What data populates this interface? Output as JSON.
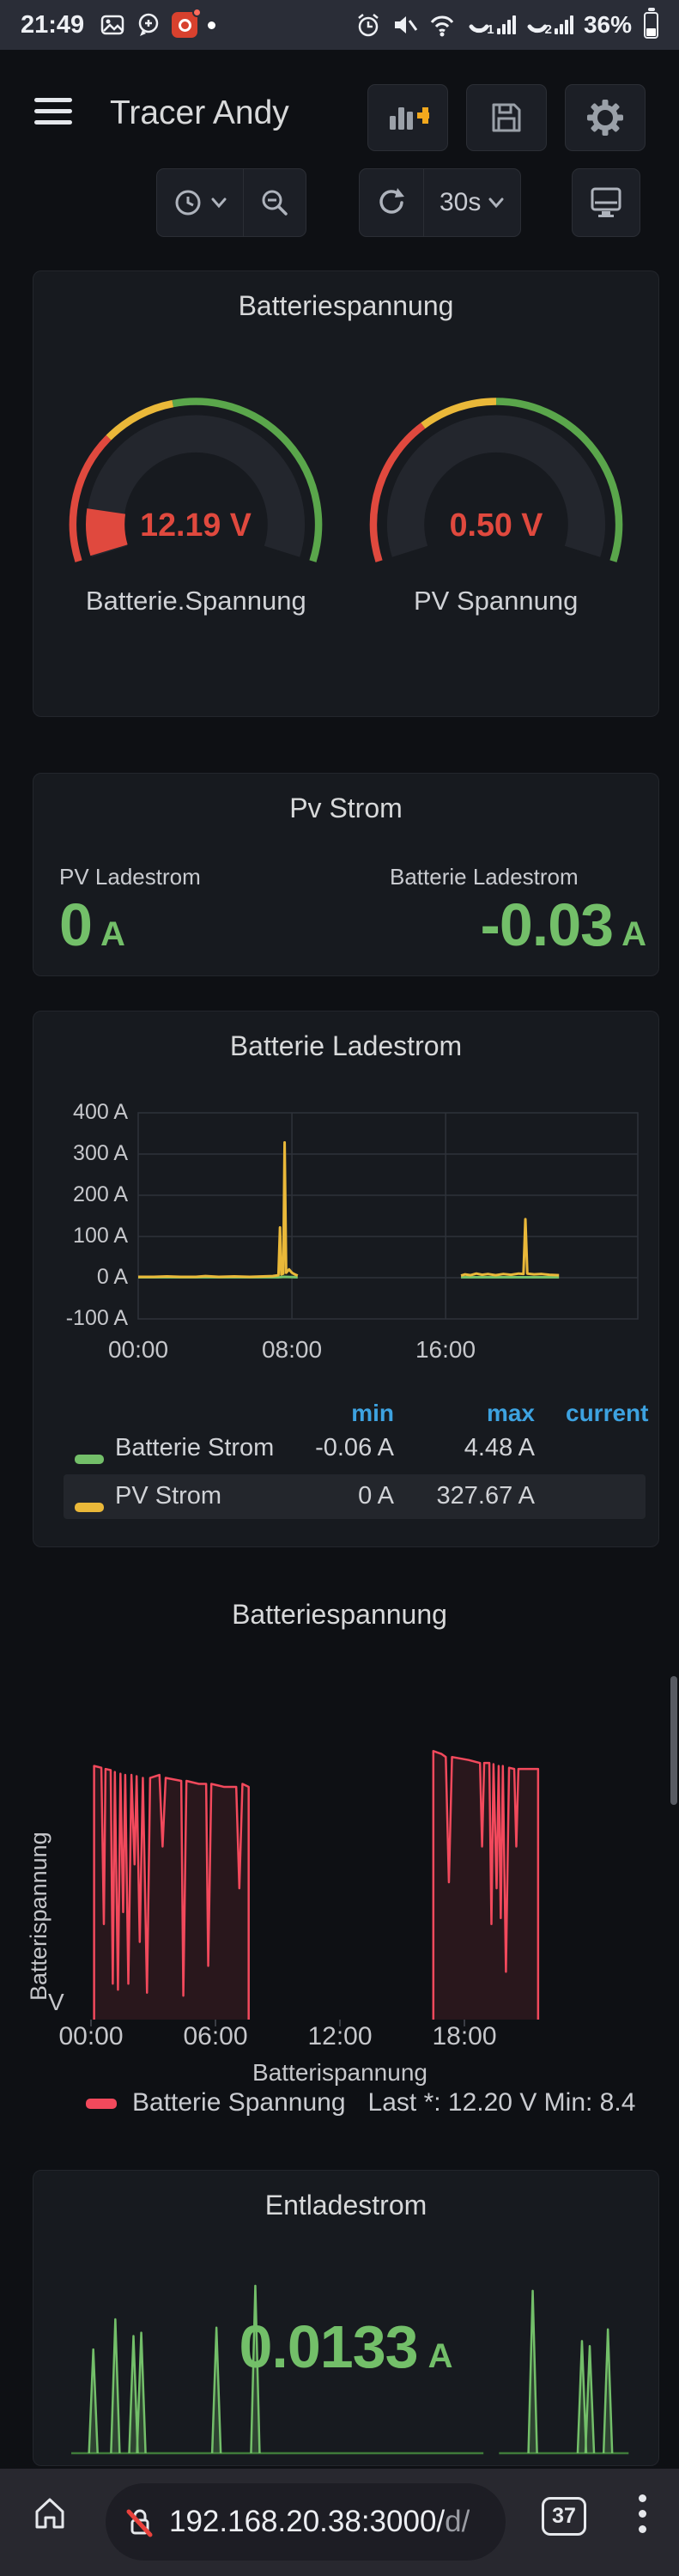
{
  "status_bar": {
    "time": "21:49",
    "battery": "36%",
    "sim1": "1",
    "sim2": "2"
  },
  "header": {
    "title": "Tracer Andy"
  },
  "toolbar": {
    "interval": "30s"
  },
  "panels": {
    "gauge_panel": {
      "title": "Batteriespannung"
    },
    "pv": {
      "title": "Pv Strom",
      "stats": [
        {
          "label": "PV Ladestrom",
          "value": "0",
          "unit": "A"
        },
        {
          "label": "Batterie Ladestrom",
          "value": "-0.03",
          "unit": "A"
        }
      ]
    }
  },
  "chart_data": [
    {
      "type": "gauge",
      "title": "Batterie.Spannung",
      "value": 12.19,
      "unit": "V",
      "display": "12.19 V",
      "fill_fraction": 0.12,
      "value_color": "#E0493E",
      "thresholds": [
        {
          "to": 0.29,
          "color": "#E0493E"
        },
        {
          "to": 0.45,
          "color": "#EAB839"
        },
        {
          "to": 1,
          "color": "#5AA64B"
        }
      ]
    },
    {
      "type": "gauge",
      "title": "PV Spannung",
      "value": 0.5,
      "unit": "V",
      "display": "0.50 V",
      "fill_fraction": 0.008,
      "value_color": "#E0493E",
      "thresholds": [
        {
          "to": 0.33,
          "color": "#E0493E"
        },
        {
          "to": 0.5,
          "color": "#EAB839"
        },
        {
          "to": 1,
          "color": "#5AA64B"
        }
      ]
    },
    {
      "type": "line",
      "title": "Batterie Ladestrom",
      "ylim": [
        -100,
        400
      ],
      "x_hours": [
        0,
        26
      ],
      "yticks": [
        "400 A",
        "300 A",
        "200 A",
        "100 A",
        "0 A",
        "-100 A"
      ],
      "xticks": [
        "00:00",
        "08:00",
        "16:00"
      ],
      "legend_columns": [
        "min",
        "max",
        "current"
      ],
      "series": [
        {
          "name": "Batterie Strom",
          "color": "#73BF69",
          "min": "-0.06 A",
          "max": "4.48 A",
          "segments": [
            [
              [
                0,
                1
              ],
              [
                7.3,
                1
              ],
              [
                7.6,
                2
              ],
              [
                8.3,
                1
              ]
            ],
            [
              [
                16.8,
                1
              ],
              [
                21.9,
                1
              ]
            ]
          ]
        },
        {
          "name": "PV Strom",
          "color": "#EAB839",
          "min": "0 A",
          "max": "327.67 A",
          "segments": [
            [
              [
                0,
                2
              ],
              [
                0.8,
                2
              ],
              [
                1.5,
                3
              ],
              [
                2.2,
                2
              ],
              [
                3,
                2
              ],
              [
                3.5,
                4
              ],
              [
                4.2,
                2
              ],
              [
                5,
                3
              ],
              [
                5.8,
                2
              ],
              [
                6.5,
                3
              ],
              [
                7.0,
                4
              ],
              [
                7.3,
                6
              ],
              [
                7.38,
                122
              ],
              [
                7.45,
                8
              ],
              [
                7.55,
                10
              ],
              [
                7.62,
                328
              ],
              [
                7.7,
                12
              ],
              [
                7.85,
                20
              ],
              [
                8.0,
                12
              ],
              [
                8.15,
                8
              ],
              [
                8.3,
                5
              ]
            ],
            [
              [
                16.8,
                5
              ],
              [
                17.0,
                8
              ],
              [
                17.3,
                6
              ],
              [
                17.6,
                10
              ],
              [
                17.9,
                7
              ],
              [
                18.2,
                9
              ],
              [
                18.6,
                6
              ],
              [
                19.0,
                9
              ],
              [
                19.4,
                7
              ],
              [
                19.8,
                10
              ],
              [
                20.05,
                9
              ],
              [
                20.15,
                142
              ],
              [
                20.25,
                10
              ],
              [
                20.6,
                8
              ],
              [
                21.0,
                9
              ],
              [
                21.4,
                7
              ],
              [
                21.9,
                6
              ]
            ]
          ]
        }
      ]
    },
    {
      "type": "line",
      "title": "Batteriespannung",
      "ylabel": "Batterispannung",
      "y_unit": "V",
      "xlabel": "Batterispannung",
      "xticks": [
        "00:00",
        "06:00",
        "12:00",
        "18:00"
      ],
      "ylim": [
        8,
        13
      ],
      "x_hours": [
        0,
        26
      ],
      "series": [
        {
          "name": "Batterie Spannung",
          "color": "#F2495C",
          "fill": true,
          "legend_stats": "Last *: 12.20 V  Min: 8.4",
          "segments": [
            [
              [
                0.15,
                12.25
              ],
              [
                0.5,
                12.22
              ],
              [
                0.62,
                9.6
              ],
              [
                0.7,
                12.2
              ],
              [
                0.95,
                12.18
              ],
              [
                1.05,
                8.6
              ],
              [
                1.15,
                12.15
              ],
              [
                1.3,
                8.5
              ],
              [
                1.42,
                12.12
              ],
              [
                1.55,
                9.8
              ],
              [
                1.65,
                12.1
              ],
              [
                1.8,
                8.6
              ],
              [
                1.95,
                12.1
              ],
              [
                2.1,
                10.6
              ],
              [
                2.2,
                12.08
              ],
              [
                2.35,
                9.3
              ],
              [
                2.5,
                12.05
              ],
              [
                2.7,
                8.45
              ],
              [
                2.85,
                12.05
              ],
              [
                3.3,
                12.1
              ],
              [
                3.45,
                10.9
              ],
              [
                3.6,
                12.05
              ],
              [
                4.35,
                12.0
              ],
              [
                4.45,
                8.4
              ],
              [
                4.6,
                12.0
              ],
              [
                5.2,
                11.95
              ],
              [
                5.55,
                11.95
              ],
              [
                5.65,
                8.9
              ],
              [
                5.8,
                11.95
              ],
              [
                6.4,
                11.9
              ],
              [
                7.0,
                11.9
              ],
              [
                7.15,
                10.2
              ],
              [
                7.3,
                11.95
              ],
              [
                7.6,
                11.9
              ]
            ],
            [
              [
                16.5,
                12.5
              ],
              [
                16.9,
                12.45
              ],
              [
                17.1,
                12.4
              ],
              [
                17.25,
                10.3
              ],
              [
                17.4,
                12.4
              ],
              [
                18.2,
                12.35
              ],
              [
                18.75,
                12.3
              ],
              [
                18.85,
                10.9
              ],
              [
                18.95,
                12.3
              ],
              [
                19.2,
                12.3
              ],
              [
                19.3,
                9.6
              ],
              [
                19.4,
                12.28
              ],
              [
                19.55,
                10.2
              ],
              [
                19.65,
                12.25
              ],
              [
                19.75,
                9.7
              ],
              [
                19.85,
                12.25
              ],
              [
                20.0,
                8.8
              ],
              [
                20.15,
                12.22
              ],
              [
                20.4,
                12.2
              ],
              [
                20.5,
                10.9
              ],
              [
                20.6,
                12.2
              ],
              [
                21.0,
                12.2
              ],
              [
                21.55,
                12.2
              ]
            ]
          ]
        }
      ]
    },
    {
      "type": "sparkline",
      "title": "Entladestrom",
      "value": "0.0133",
      "unit": "A",
      "color": "#73BF69",
      "baseline_hours": [
        [
          0.1,
          16.0
        ],
        [
          16.6,
          21.6
        ]
      ],
      "spikes": [
        [
          0.95,
          0.62
        ],
        [
          1.8,
          0.8
        ],
        [
          2.5,
          0.7
        ],
        [
          2.8,
          0.72
        ],
        [
          5.7,
          0.75
        ],
        [
          7.2,
          1.0
        ],
        [
          17.9,
          0.97
        ],
        [
          19.8,
          0.67
        ],
        [
          20.1,
          0.64
        ],
        [
          20.8,
          0.74
        ]
      ]
    }
  ],
  "browser_bar": {
    "host": "192.168.20.38:3000/",
    "path": "d/",
    "tabs": "37"
  }
}
